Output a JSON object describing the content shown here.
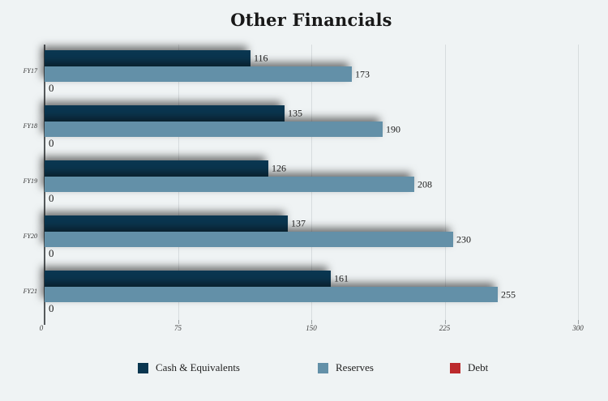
{
  "chart_data": {
    "type": "bar",
    "orientation": "horizontal",
    "title": "Other Financials",
    "categories": [
      "FY17",
      "FY18",
      "FY19",
      "FY20",
      "FY21"
    ],
    "series": [
      {
        "name": "Cash & Equivalents",
        "color": "#0a3650",
        "values": [
          116,
          135,
          126,
          137,
          161
        ]
      },
      {
        "name": "Reserves",
        "color": "#6390a8",
        "values": [
          173,
          190,
          208,
          230,
          255
        ]
      },
      {
        "name": "Debt",
        "color": "#bc2a2d",
        "values": [
          0,
          0,
          0,
          0,
          0
        ]
      }
    ],
    "xlim": [
      0,
      300
    ],
    "x_ticks": [
      "0",
      "75",
      "150",
      "225",
      "300"
    ],
    "grid": true,
    "value_labels": true,
    "legend_position": "bottom",
    "background_color": "#eff3f4",
    "gridline_color": "#d7dcde",
    "axis_color": "#555a5c"
  }
}
